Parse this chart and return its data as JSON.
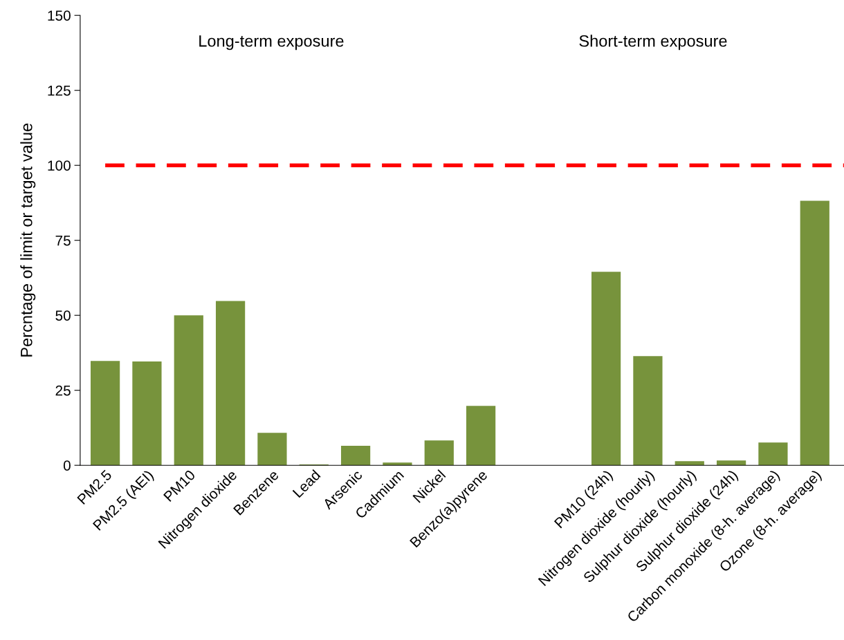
{
  "chart_data": {
    "type": "bar",
    "ylabel": "Percntage of limit or target value",
    "categories": [
      "PM2.5",
      "PM2.5 (AEI)",
      "PM10",
      "Nitrogen dioxide",
      "Benzene",
      "Lead",
      "Arsenic",
      "Cadmium",
      "Nickel",
      "Benzo(a)pyrene",
      null,
      null,
      "PM10 (24h)",
      "Nitrogen dioxide (hourly)",
      "Sulphur dioxide (hourly)",
      "Sulphur dioxide (24h)",
      "Carbon monoxide (8-h. average)",
      "Ozone (8-h. average)"
    ],
    "values": [
      34.8,
      34.6,
      50,
      54.8,
      10.8,
      0.3,
      6.5,
      0.9,
      8.3,
      19.8,
      null,
      null,
      64.5,
      36.4,
      1.4,
      1.6,
      7.6,
      88.2
    ],
    "color": "#77933c",
    "ylim": [
      0,
      150
    ],
    "yticks": [
      0,
      25,
      50,
      75,
      100,
      125,
      150
    ],
    "grid": false,
    "ref_lines": [
      {
        "axis": "y",
        "value": 100,
        "label": null,
        "color": "#ff0000",
        "line_style": "dashed"
      }
    ],
    "annotations": [
      "Long-term exposure",
      "Short-term exposure"
    ]
  }
}
